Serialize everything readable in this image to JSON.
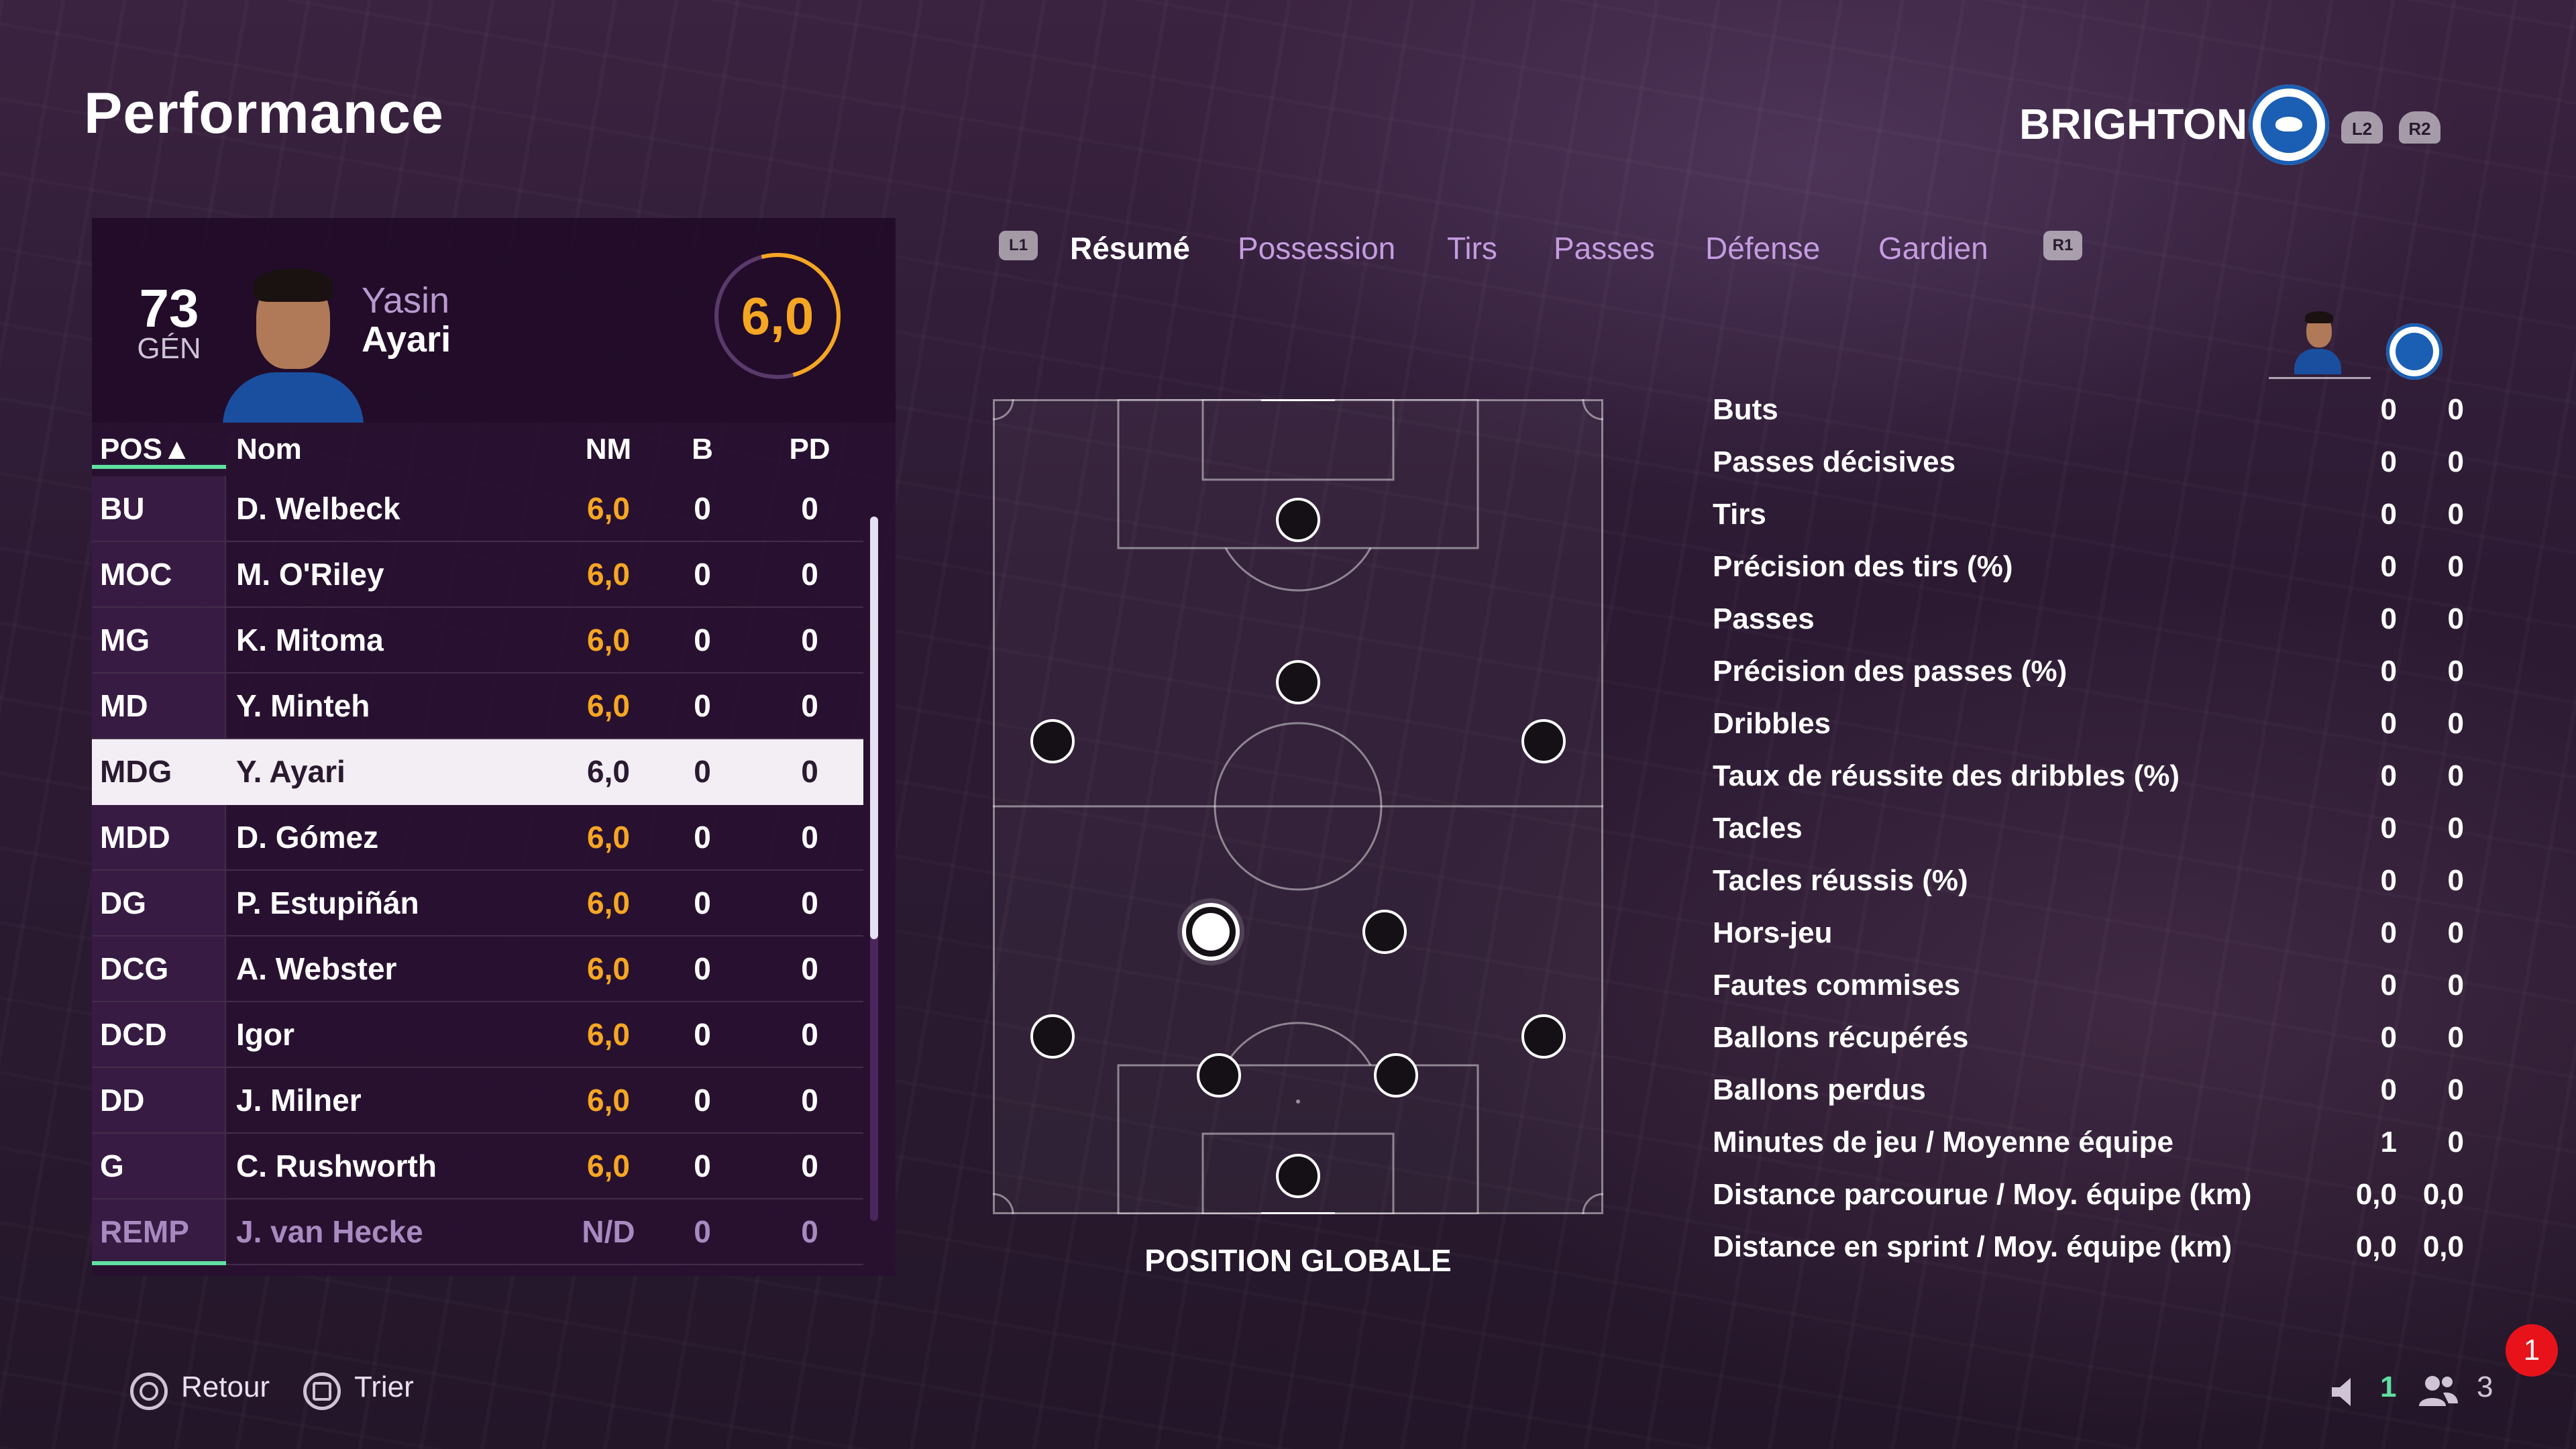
{
  "header": {
    "title": "Performance",
    "team": "BRIGHTON",
    "l2": "L2",
    "r2": "R2"
  },
  "player": {
    "overall": "73",
    "overall_label": "GÉN",
    "first_name": "Yasin",
    "last_name": "Ayari",
    "rating": "6,0"
  },
  "table": {
    "headers": {
      "pos": "POS▲",
      "name": "Nom",
      "nm": "NM",
      "b": "B",
      "pd": "PD"
    },
    "rows": [
      {
        "pos": "BU",
        "name": "D. Welbeck",
        "nm": "6,0",
        "b": "0",
        "pd": "0"
      },
      {
        "pos": "MOC",
        "name": "M. O'Riley",
        "nm": "6,0",
        "b": "0",
        "pd": "0"
      },
      {
        "pos": "MG",
        "name": "K. Mitoma",
        "nm": "6,0",
        "b": "0",
        "pd": "0"
      },
      {
        "pos": "MD",
        "name": "Y. Minteh",
        "nm": "6,0",
        "b": "0",
        "pd": "0"
      },
      {
        "pos": "MDG",
        "name": "Y. Ayari",
        "nm": "6,0",
        "b": "0",
        "pd": "0"
      },
      {
        "pos": "MDD",
        "name": "D. Gómez",
        "nm": "6,0",
        "b": "0",
        "pd": "0"
      },
      {
        "pos": "DG",
        "name": "P. Estupiñán",
        "nm": "6,0",
        "b": "0",
        "pd": "0"
      },
      {
        "pos": "DCG",
        "name": "A. Webster",
        "nm": "6,0",
        "b": "0",
        "pd": "0"
      },
      {
        "pos": "DCD",
        "name": "Igor",
        "nm": "6,0",
        "b": "0",
        "pd": "0"
      },
      {
        "pos": "DD",
        "name": "J. Milner",
        "nm": "6,0",
        "b": "0",
        "pd": "0"
      },
      {
        "pos": "G",
        "name": "C. Rushworth",
        "nm": "6,0",
        "b": "0",
        "pd": "0"
      },
      {
        "pos": "REMP",
        "name": "J. van Hecke",
        "nm": "N/D",
        "b": "0",
        "pd": "0"
      }
    ],
    "selected_index": 4
  },
  "tabs": {
    "l1": "L1",
    "r1": "R1",
    "items": [
      "Résumé",
      "Possession",
      "Tirs",
      "Passes",
      "Défense",
      "Gardien"
    ],
    "active": "Résumé"
  },
  "pitch": {
    "label": "POSITION GLOBALE"
  },
  "stats": {
    "rows": [
      {
        "label": "Buts",
        "player": "0",
        "team": "0"
      },
      {
        "label": "Passes décisives",
        "player": "0",
        "team": "0"
      },
      {
        "label": "Tirs",
        "player": "0",
        "team": "0"
      },
      {
        "label": "Précision des tirs (%)",
        "player": "0",
        "team": "0"
      },
      {
        "label": "Passes",
        "player": "0",
        "team": "0"
      },
      {
        "label": "Précision des passes (%)",
        "player": "0",
        "team": "0"
      },
      {
        "label": "Dribbles",
        "player": "0",
        "team": "0"
      },
      {
        "label": "Taux de réussite des dribbles (%)",
        "player": "0",
        "team": "0"
      },
      {
        "label": "Tacles",
        "player": "0",
        "team": "0"
      },
      {
        "label": "Tacles réussis (%)",
        "player": "0",
        "team": "0"
      },
      {
        "label": "Hors-jeu",
        "player": "0",
        "team": "0"
      },
      {
        "label": "Fautes commises",
        "player": "0",
        "team": "0"
      },
      {
        "label": "Ballons récupérés",
        "player": "0",
        "team": "0"
      },
      {
        "label": "Ballons perdus",
        "player": "0",
        "team": "0"
      },
      {
        "label": "Minutes de jeu / Moyenne équipe",
        "player": "1",
        "team": "0"
      },
      {
        "label": "Distance parcourue / Moy. équipe (km)",
        "player": "0,0",
        "team": "0,0"
      },
      {
        "label": "Distance en sprint / Moy. équipe (km)",
        "player": "0,0",
        "team": "0,0"
      }
    ]
  },
  "footer": {
    "back": "Retour",
    "sort": "Trier",
    "count_online": "1",
    "count_players": "3",
    "notification": "1"
  },
  "colors": {
    "accent_orange": "#f5a623",
    "accent_green": "#5fe0a0",
    "tab_inactive": "#c59ce0",
    "brighton_blue": "#1a5fb4"
  }
}
